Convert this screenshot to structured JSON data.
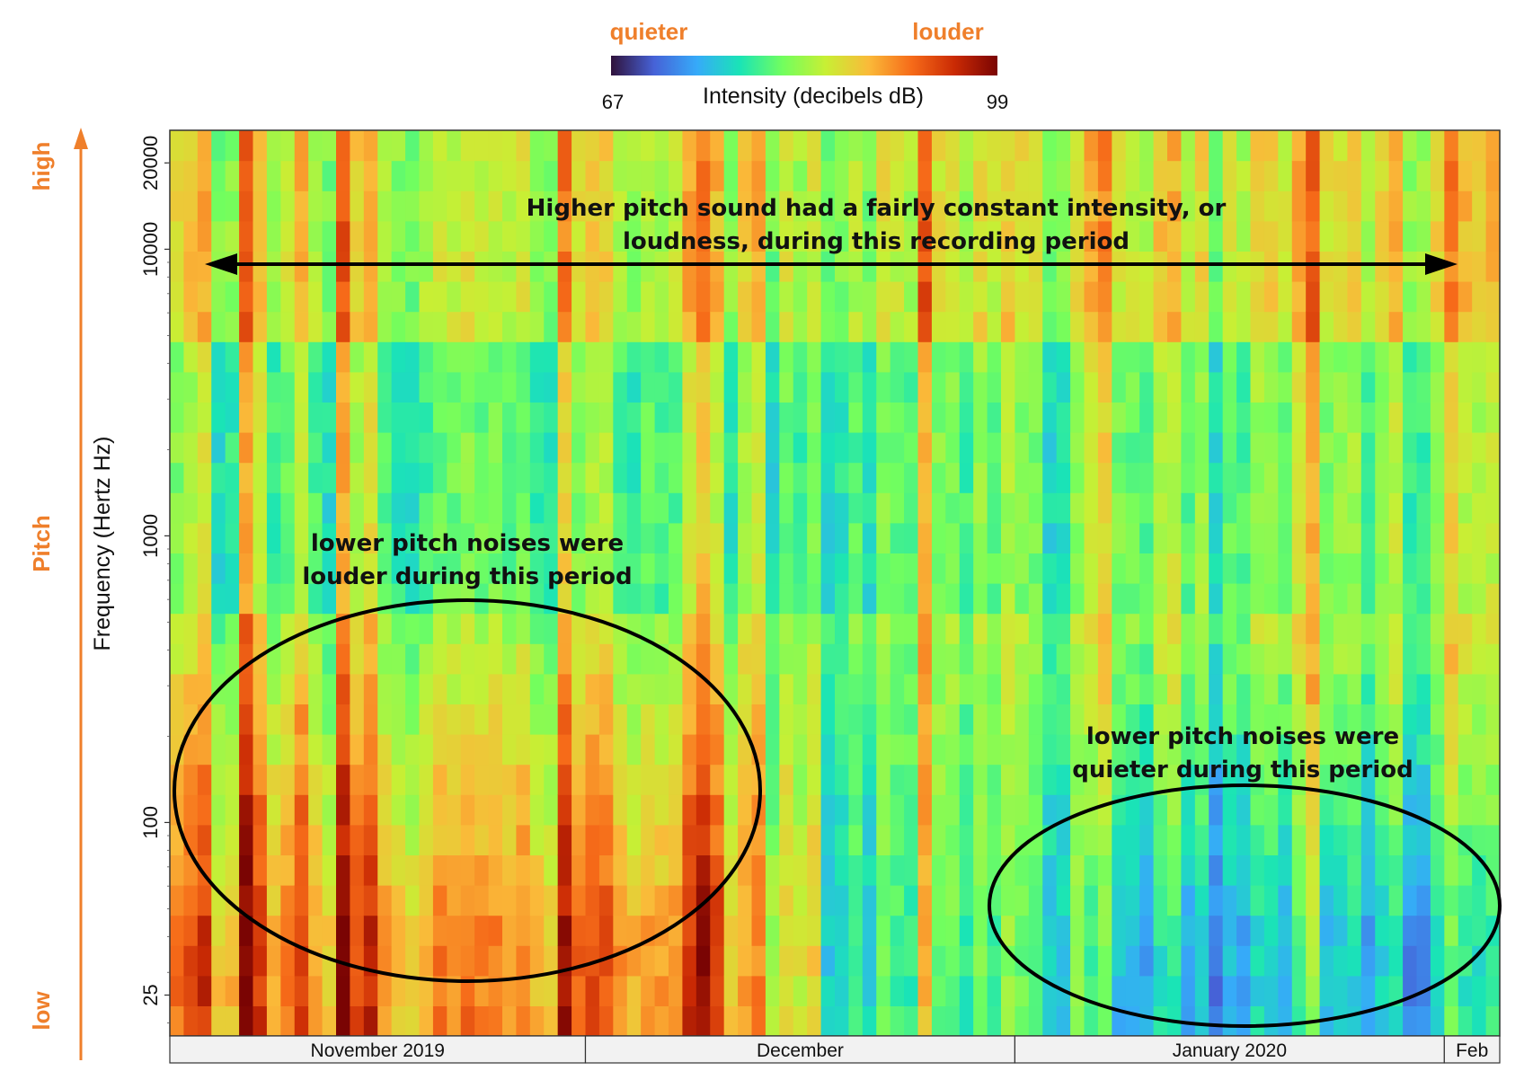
{
  "chart_data": {
    "type": "heatmap",
    "colorbar": {
      "low_word": "quieter",
      "high_word": "louder",
      "min": 67,
      "max": 99,
      "min_label": "67",
      "max_label": "99",
      "label": "Intensity  (decibels dB)",
      "colors": [
        "#30123b",
        "#4662d7",
        "#36aaf9",
        "#1ae4b6",
        "#72fe5e",
        "#c8ef34",
        "#faba39",
        "#f66b19",
        "#ca2a04",
        "#7a0403"
      ]
    },
    "y_axis": {
      "label": "Frequency (Hertz Hz)",
      "scale": "log",
      "ticks": [
        {
          "value": 25,
          "label": "25"
        },
        {
          "value": 100,
          "label": "100"
        },
        {
          "value": 1000,
          "label": "1000"
        },
        {
          "value": 10000,
          "label": "10000"
        },
        {
          "value": 20000,
          "label": "20000"
        }
      ],
      "side_low": "low",
      "side_mid": "Pitch",
      "side_high": "high",
      "arrow_color": "#ef7f2b"
    },
    "x_axis": {
      "months": [
        {
          "label": "November 2019",
          "days": 30
        },
        {
          "label": "December",
          "days": 31
        },
        {
          "label": "January 2020",
          "days": 31
        },
        {
          "label": "Feb",
          "days": 4
        }
      ],
      "columns": 96
    },
    "profiles": {
      "high_band_db": 86,
      "mid_band_db": 83,
      "nov_low_band_db": 91,
      "jan_low_band_db": 75
    },
    "annotations": [
      {
        "lines": [
          "Higher pitch sound had a fairly constant intensity, or",
          "loudness, during this recording period"
        ],
        "shape": "double-arrow"
      },
      {
        "lines": [
          "lower pitch noises were",
          "louder during this period"
        ],
        "shape": "ellipse"
      },
      {
        "lines": [
          "lower pitch noises were",
          "quieter during this period"
        ],
        "shape": "ellipse"
      }
    ]
  }
}
